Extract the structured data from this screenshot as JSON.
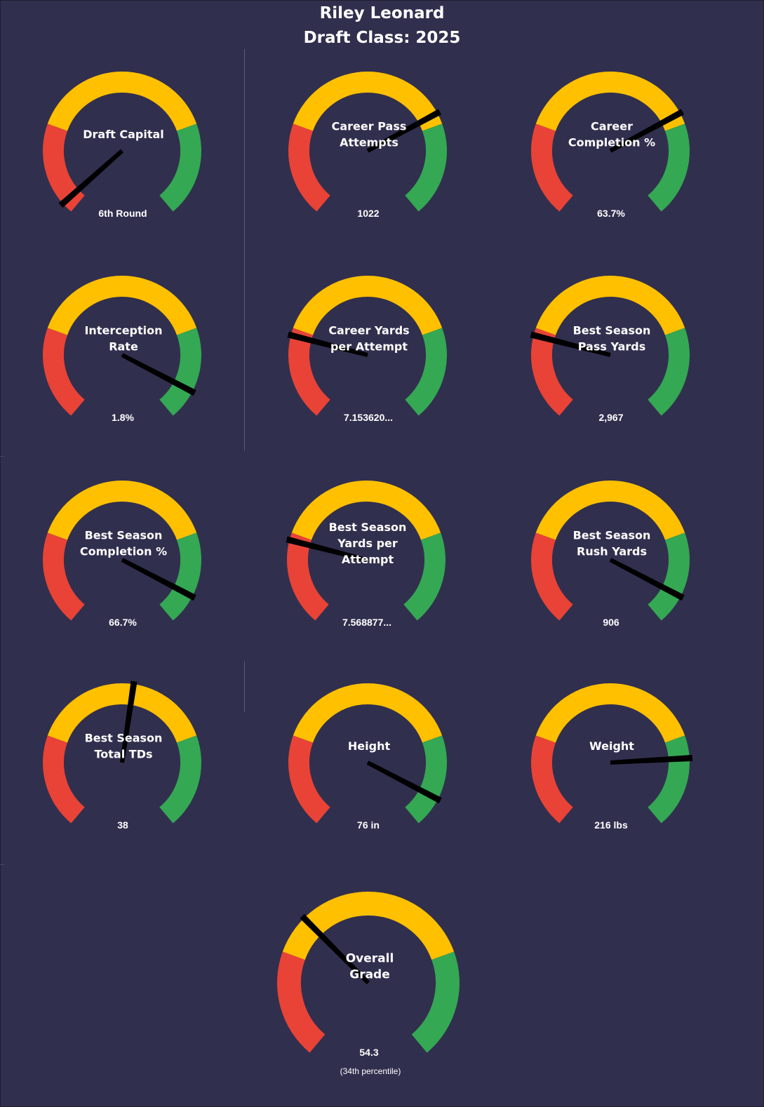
{
  "header": {
    "name": "Riley Leonard",
    "draft_class": "Draft Class: 2025"
  },
  "colors": {
    "background": "#312f4e",
    "low": "#e84336",
    "mid": "#ffc000",
    "high": "#34a853",
    "needle": "#000000",
    "text": "#ffffff"
  },
  "chart_data": [
    {
      "type": "gauge",
      "id": "draft-capital",
      "title": [
        "Draft Capital"
      ],
      "value_label": "6th Round",
      "percentile": 0.03
    },
    {
      "type": "gauge",
      "id": "career-pass-attempts",
      "title": [
        "Career Pass",
        "Attempts"
      ],
      "value_label": "1022",
      "percentile": 0.72
    },
    {
      "type": "gauge",
      "id": "career-completion",
      "title": [
        "Career",
        "Completion %"
      ],
      "value_label": "63.7%",
      "percentile": 0.72
    },
    {
      "type": "gauge",
      "id": "interception-rate",
      "title": [
        "Interception",
        "Rate"
      ],
      "value_label": "1.8%",
      "percentile": 0.92
    },
    {
      "type": "gauge",
      "id": "career-yards-per-attempt",
      "title": [
        "Career Yards",
        "per Attempt"
      ],
      "value_label": "7.153620...",
      "percentile": 0.23
    },
    {
      "type": "gauge",
      "id": "best-season-pass-yards",
      "title": [
        "Best Season",
        "Pass Yards"
      ],
      "value_label": "2,967",
      "percentile": 0.23
    },
    {
      "type": "gauge",
      "id": "best-season-completion",
      "title": [
        "Best Season",
        "Completion %"
      ],
      "value_label": "66.7%",
      "percentile": 0.92
    },
    {
      "type": "gauge",
      "id": "best-season-ypa",
      "title": [
        "Best Season",
        "Yards per",
        "Attempt"
      ],
      "value_label": "7.568877...",
      "percentile": 0.23
    },
    {
      "type": "gauge",
      "id": "best-season-rush-yards",
      "title": [
        "Best Season",
        "Rush Yards"
      ],
      "value_label": "906",
      "percentile": 0.92
    },
    {
      "type": "gauge",
      "id": "best-season-total-tds",
      "title": [
        "Best Season",
        "Total TDs"
      ],
      "value_label": "38",
      "percentile": 0.53
    },
    {
      "type": "gauge",
      "id": "height",
      "title": [
        "Height"
      ],
      "value_label": "76 in",
      "percentile": 0.92
    },
    {
      "type": "gauge",
      "id": "weight",
      "title": [
        "Weight"
      ],
      "value_label": "216 lbs",
      "percentile": 0.81
    },
    {
      "type": "gauge",
      "id": "overall-grade",
      "title": [
        "Overall",
        "Grade"
      ],
      "value_label": "54.3",
      "sub_label": "(34th  percentile)",
      "percentile": 0.34
    }
  ]
}
